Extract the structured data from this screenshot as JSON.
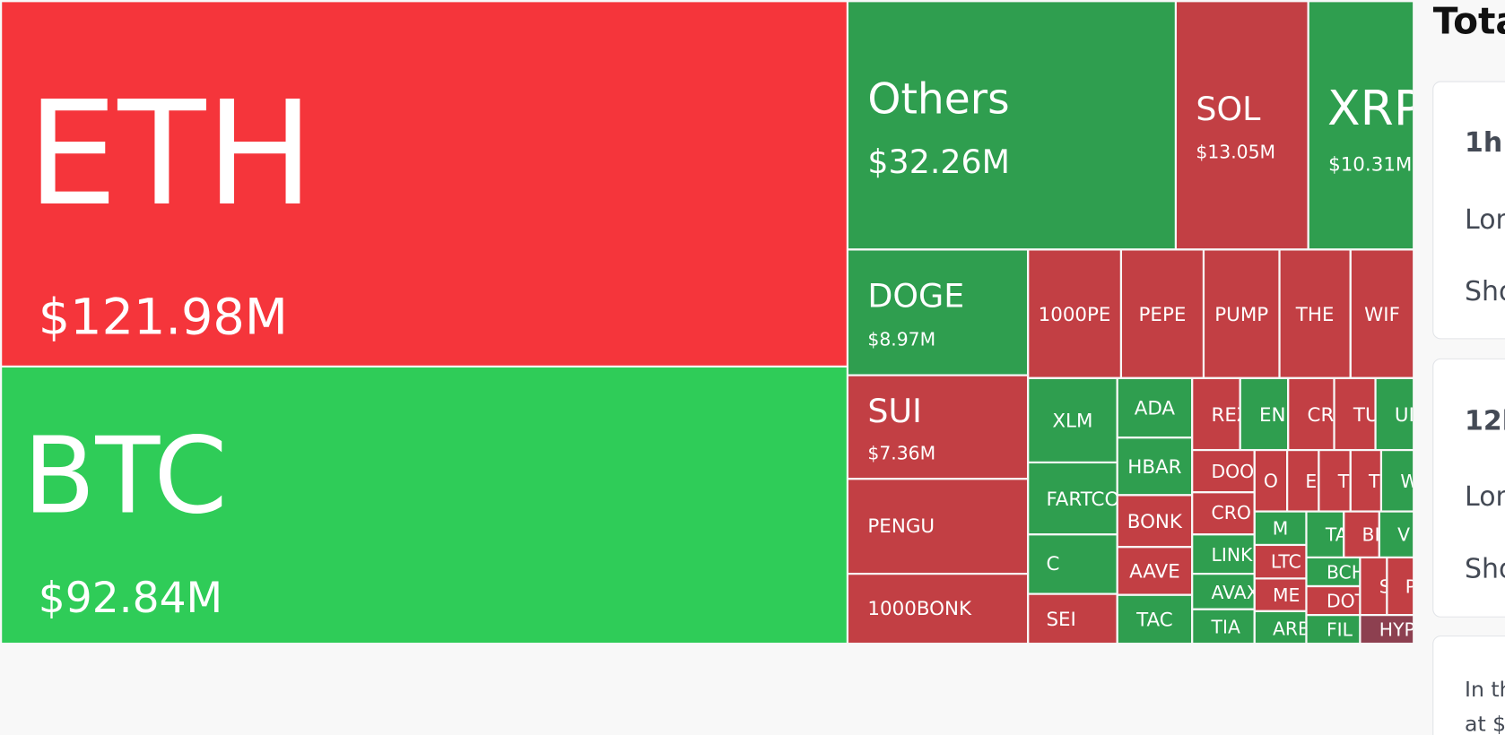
{
  "treemap": {
    "tiles": [
      {
        "label": "ETH",
        "value": "$121.98M",
        "color": "#f5353b"
      },
      {
        "label": "BTC",
        "value": "$92.84M",
        "color": "#2fcc58"
      },
      {
        "label": "Others",
        "value": "$32.26M",
        "color": "#2f9e4f"
      },
      {
        "label": "SOL",
        "value": "$13.05M",
        "color": "#c23f44"
      },
      {
        "label": "XRP",
        "value": "$10.31M",
        "color": "#2f9e4f"
      },
      {
        "label": "DOGE",
        "value": "$8.97M",
        "color": "#2f9e4f"
      },
      {
        "label": "1000PE",
        "color": "#c23f44"
      },
      {
        "label": "PEPE",
        "color": "#c23f44"
      },
      {
        "label": "PUMP",
        "color": "#c23f44"
      },
      {
        "label": "THE",
        "color": "#c23f44"
      },
      {
        "label": "WIF",
        "color": "#c23f44"
      },
      {
        "label": "SUI",
        "value": "$7.36M",
        "color": "#c23f44"
      },
      {
        "label": "PENGU",
        "color": "#c23f44"
      },
      {
        "label": "1000BONK",
        "color": "#c23f44"
      },
      {
        "label": "XLM",
        "color": "#2f9e4f"
      },
      {
        "label": "ADA",
        "color": "#2f9e4f"
      },
      {
        "label": "HBAR",
        "color": "#2f9e4f"
      },
      {
        "label": "BONK",
        "color": "#c23f44"
      },
      {
        "label": "AAVE",
        "color": "#c23f44"
      },
      {
        "label": "TAC",
        "color": "#2f9e4f"
      },
      {
        "label": "FARTCO",
        "color": "#2f9e4f"
      },
      {
        "label": "C",
        "color": "#2f9e4f"
      },
      {
        "label": "SEI",
        "color": "#c23f44"
      },
      {
        "label": "REZ",
        "color": "#c23f44"
      },
      {
        "label": "EN",
        "color": "#2f9e4f"
      },
      {
        "label": "CR",
        "color": "#c23f44"
      },
      {
        "label": "TU",
        "color": "#c23f44"
      },
      {
        "label": "UI",
        "color": "#2f9e4f"
      },
      {
        "label": "DOO",
        "color": "#c23f44"
      },
      {
        "label": "CRO",
        "color": "#c23f44"
      },
      {
        "label": "LINK",
        "color": "#2f9e4f"
      },
      {
        "label": "AVAX",
        "color": "#2f9e4f"
      },
      {
        "label": "TIA",
        "color": "#2f9e4f"
      },
      {
        "label": "O",
        "color": "#c23f44"
      },
      {
        "label": "E",
        "color": "#c23f44"
      },
      {
        "label": "T",
        "color": "#c23f44"
      },
      {
        "label": "T",
        "color": "#c23f44"
      },
      {
        "label": "W",
        "color": "#2f9e4f"
      },
      {
        "label": "M",
        "color": "#2f9e4f"
      },
      {
        "label": "LTC",
        "color": "#c23f44"
      },
      {
        "label": "ME",
        "color": "#c23f44"
      },
      {
        "label": "ARB",
        "color": "#2f9e4f"
      },
      {
        "label": "TA",
        "color": "#2f9e4f"
      },
      {
        "label": "BI",
        "color": "#c23f44"
      },
      {
        "label": "V",
        "color": "#2f9e4f"
      },
      {
        "label": "BCH",
        "color": "#2f9e4f"
      },
      {
        "label": "DOT",
        "color": "#c23f44"
      },
      {
        "label": "FIL",
        "color": "#2f9e4f"
      },
      {
        "label": "S",
        "color": "#c23f44"
      },
      {
        "label": "P",
        "color": "#c23f44"
      },
      {
        "label": "HYP",
        "color": "#8d4050"
      }
    ]
  },
  "panel": {
    "title": "Tota",
    "cards": [
      {
        "heading": "1h",
        "lines": [
          "Lon",
          "Sho"
        ]
      },
      {
        "heading": "12h",
        "lines": [
          "Lon",
          "Sho"
        ]
      },
      {
        "lines": [
          "In th",
          "at $"
        ]
      }
    ]
  }
}
